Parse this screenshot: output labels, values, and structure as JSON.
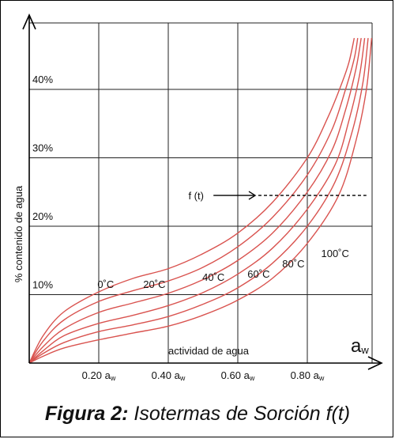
{
  "chart_data": {
    "type": "line",
    "ylabel": "% contenido de agua",
    "xlabel": "actividad de agua",
    "x_axis_symbol": "a",
    "x_axis_symbol_sub": "w",
    "xlim": [
      0,
      1.0
    ],
    "ylim": [
      0,
      48
    ],
    "x_ticks": [
      {
        "value": 0.2,
        "label": "0.20 a",
        "sub": "w"
      },
      {
        "value": 0.4,
        "label": "0.40 a",
        "sub": "w"
      },
      {
        "value": 0.6,
        "label": "0.60 a",
        "sub": "w"
      },
      {
        "value": 0.8,
        "label": "0.80 a",
        "sub": "w"
      }
    ],
    "y_ticks": [
      {
        "value": 10,
        "label": "10%"
      },
      {
        "value": 20,
        "label": "20%"
      },
      {
        "value": 30,
        "label": "30%"
      },
      {
        "value": 40,
        "label": "40%"
      }
    ],
    "grid": true,
    "color": "#d9534f",
    "series": [
      {
        "name": "0˚C",
        "label_at": [
          0.22,
          11.0
        ],
        "points": [
          [
            0,
            0
          ],
          [
            0.04,
            4.0
          ],
          [
            0.1,
            7.5
          ],
          [
            0.2,
            10.4
          ],
          [
            0.3,
            12.4
          ],
          [
            0.4,
            13.8
          ],
          [
            0.5,
            16.0
          ],
          [
            0.6,
            19.0
          ],
          [
            0.7,
            23.5
          ],
          [
            0.8,
            30.0
          ],
          [
            0.86,
            36.0
          ],
          [
            0.9,
            41.0
          ],
          [
            0.92,
            44.0
          ],
          [
            0.935,
            47.5
          ]
        ]
      },
      {
        "name": "20˚C",
        "label_at": [
          0.36,
          11.0
        ],
        "points": [
          [
            0,
            0
          ],
          [
            0.04,
            3.2
          ],
          [
            0.1,
            6.3
          ],
          [
            0.2,
            9.0
          ],
          [
            0.3,
            10.6
          ],
          [
            0.4,
            12.0
          ],
          [
            0.5,
            14.0
          ],
          [
            0.6,
            17.0
          ],
          [
            0.7,
            21.3
          ],
          [
            0.8,
            27.5
          ],
          [
            0.87,
            34.0
          ],
          [
            0.91,
            40.0
          ],
          [
            0.935,
            44.5
          ],
          [
            0.945,
            47.5
          ]
        ]
      },
      {
        "name": "40˚C",
        "label_at": [
          0.53,
          12.0
        ],
        "points": [
          [
            0,
            0
          ],
          [
            0.04,
            2.4
          ],
          [
            0.1,
            5.0
          ],
          [
            0.2,
            7.4
          ],
          [
            0.3,
            8.8
          ],
          [
            0.4,
            10.2
          ],
          [
            0.5,
            12.2
          ],
          [
            0.6,
            15.0
          ],
          [
            0.7,
            19.0
          ],
          [
            0.8,
            25.0
          ],
          [
            0.87,
            31.0
          ],
          [
            0.91,
            37.0
          ],
          [
            0.94,
            43.0
          ],
          [
            0.955,
            47.5
          ]
        ]
      },
      {
        "name": "60˚C",
        "label_at": [
          0.66,
          12.5
        ],
        "points": [
          [
            0,
            0
          ],
          [
            0.04,
            1.8
          ],
          [
            0.1,
            4.0
          ],
          [
            0.2,
            5.8
          ],
          [
            0.3,
            7.0
          ],
          [
            0.4,
            8.4
          ],
          [
            0.5,
            10.3
          ],
          [
            0.6,
            13.0
          ],
          [
            0.7,
            16.8
          ],
          [
            0.8,
            22.5
          ],
          [
            0.88,
            29.0
          ],
          [
            0.92,
            35.5
          ],
          [
            0.95,
            42.0
          ],
          [
            0.965,
            47.5
          ]
        ]
      },
      {
        "name": "80˚C",
        "label_at": [
          0.76,
          14.0
        ],
        "points": [
          [
            0,
            0
          ],
          [
            0.04,
            1.4
          ],
          [
            0.1,
            3.0
          ],
          [
            0.2,
            4.6
          ],
          [
            0.3,
            5.6
          ],
          [
            0.4,
            6.8
          ],
          [
            0.5,
            8.6
          ],
          [
            0.6,
            11.0
          ],
          [
            0.7,
            14.6
          ],
          [
            0.8,
            20.0
          ],
          [
            0.88,
            26.5
          ],
          [
            0.93,
            34.0
          ],
          [
            0.96,
            41.0
          ],
          [
            0.975,
            47.5
          ]
        ]
      },
      {
        "name": "100˚C",
        "label_at": [
          0.88,
          15.5
        ],
        "points": [
          [
            0,
            0
          ],
          [
            0.04,
            1.0
          ],
          [
            0.1,
            2.2
          ],
          [
            0.2,
            3.4
          ],
          [
            0.3,
            4.4
          ],
          [
            0.4,
            5.4
          ],
          [
            0.5,
            7.0
          ],
          [
            0.6,
            9.2
          ],
          [
            0.7,
            12.4
          ],
          [
            0.8,
            17.5
          ],
          [
            0.89,
            24.5
          ],
          [
            0.94,
            32.5
          ],
          [
            0.97,
            40.0
          ],
          [
            0.985,
            47.5
          ]
        ]
      }
    ],
    "annotation": {
      "text": "f (t)",
      "arrow_x": [
        0.53,
        0.65
      ],
      "dashed_x": [
        0.65,
        0.97
      ],
      "y": 24.5,
      "text_at": [
        0.48,
        24.5
      ]
    }
  },
  "caption": {
    "bold": "Figura 2:",
    "rest": " Isotermas de Sorción f(t)"
  }
}
